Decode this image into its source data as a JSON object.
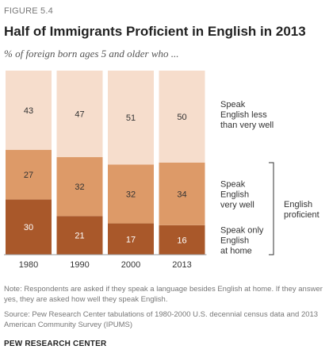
{
  "figure_label": "FIGURE 5.4",
  "chart_data": {
    "type": "bar",
    "stacked": true,
    "title": "Half of Immigrants Proficient in English in 2013",
    "subtitle": "% of foreign born ages 5 and older who ...",
    "categories": [
      "1980",
      "1990",
      "2000",
      "2013"
    ],
    "ylim": [
      0,
      100
    ],
    "grid": false,
    "series": [
      {
        "name": "Speak only English at home",
        "name_lines": [
          "Speak only",
          "English",
          "at home"
        ],
        "values": [
          30,
          21,
          17,
          16
        ],
        "color": "#a9582a"
      },
      {
        "name": "Speak English very well",
        "name_lines": [
          "Speak",
          "English",
          "very well"
        ],
        "values": [
          27,
          32,
          32,
          34
        ],
        "color": "#dd9a68"
      },
      {
        "name": "Speak English less than very well",
        "name_lines": [
          "Speak",
          "English less",
          "than very well"
        ],
        "values": [
          43,
          47,
          51,
          50
        ],
        "color": "#f6ddcc"
      }
    ],
    "bracket_label_lines": [
      "English",
      "proficient"
    ],
    "legend_placement": "right"
  },
  "note": "Note: Respondents are asked if they speak a language besides English at home. If they answer yes, they are asked how well they speak English.",
  "source": "Source: Pew Research Center tabulations of 1980-2000 U.S. decennial census data and 2013 American Community Survey (IPUMS)",
  "org": "PEW RESEARCH CENTER"
}
